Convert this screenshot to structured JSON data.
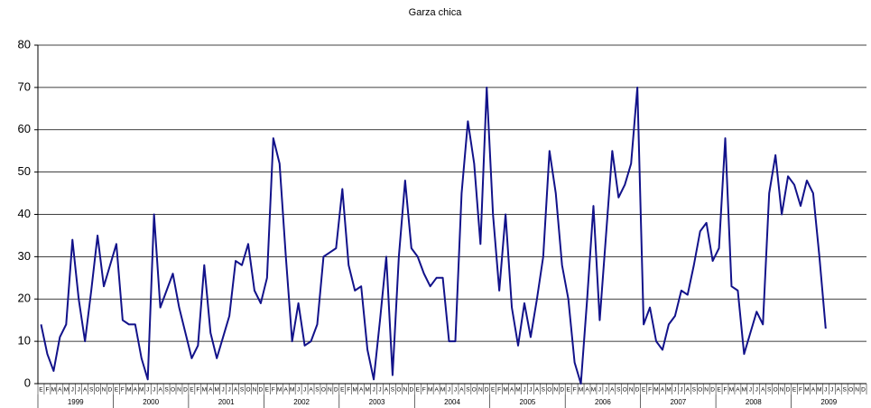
{
  "chart_data": {
    "type": "line",
    "title": "Garza chica",
    "categories": [
      "E",
      "F",
      "M",
      "A",
      "M",
      "J",
      "J",
      "A",
      "S",
      "O",
      "N",
      "D",
      "E",
      "F",
      "M",
      "A",
      "M",
      "J",
      "J",
      "A",
      "S",
      "O",
      "N",
      "D",
      "E",
      "F",
      "M",
      "A",
      "M",
      "J",
      "J",
      "A",
      "S",
      "O",
      "N",
      "D",
      "E",
      "F",
      "M",
      "A",
      "M",
      "J",
      "J",
      "A",
      "S",
      "O",
      "N",
      "D",
      "E",
      "F",
      "M",
      "A",
      "M",
      "J",
      "J",
      "A",
      "S",
      "O",
      "N",
      "D",
      "E",
      "F",
      "M",
      "A",
      "M",
      "J",
      "J",
      "A",
      "S",
      "O",
      "N",
      "D",
      "E",
      "F",
      "M",
      "A",
      "M",
      "J",
      "J",
      "A",
      "S",
      "O",
      "N",
      "D",
      "E",
      "F",
      "M",
      "A",
      "M",
      "J",
      "J",
      "A",
      "S",
      "O",
      "N",
      "D",
      "E",
      "F",
      "M",
      "A",
      "M",
      "J",
      "J",
      "A",
      "S",
      "O",
      "N",
      "D",
      "E",
      "F",
      "M",
      "A",
      "M",
      "J",
      "J",
      "A",
      "S",
      "O",
      "N",
      "D",
      "E",
      "F",
      "M",
      "A",
      "M",
      "J",
      "J",
      "A",
      "S",
      "O",
      "N",
      "D"
    ],
    "years": [
      "1999",
      "2000",
      "2001",
      "2002",
      "2003",
      "2004",
      "2005",
      "2006",
      "2007",
      "2008",
      "2009"
    ],
    "series": [
      {
        "name": "Garza chica",
        "color": "#12128a",
        "values": [
          14,
          7,
          3,
          11,
          14,
          34,
          20,
          10,
          22,
          35,
          23,
          28,
          33,
          15,
          14,
          14,
          6,
          1,
          40,
          18,
          22,
          26,
          18,
          12,
          6,
          9,
          28,
          12,
          6,
          11,
          16,
          29,
          28,
          33,
          22,
          19,
          25,
          58,
          52,
          30,
          10,
          19,
          9,
          10,
          14,
          30,
          31,
          32,
          46,
          28,
          22,
          23,
          8,
          1,
          15,
          30,
          2,
          30,
          48,
          32,
          30,
          26,
          23,
          25,
          25,
          10,
          10,
          45,
          62,
          52,
          33,
          70,
          40,
          22,
          40,
          18,
          9,
          19,
          11,
          20,
          30,
          55,
          45,
          28,
          20,
          5,
          0,
          20,
          42,
          15,
          35,
          55,
          44,
          47,
          52,
          70,
          14,
          18,
          10,
          8,
          14,
          16,
          22,
          21,
          28,
          36,
          38,
          29,
          32,
          58,
          23,
          22,
          7,
          12,
          17,
          14,
          45,
          54,
          40,
          49,
          47,
          42,
          48,
          45,
          30,
          13,
          null,
          null,
          null,
          null,
          null,
          null
        ]
      }
    ],
    "ylim": [
      0,
      80
    ],
    "yticks": [
      0,
      10,
      20,
      30,
      40,
      50,
      60,
      70,
      80
    ],
    "grid": true
  }
}
